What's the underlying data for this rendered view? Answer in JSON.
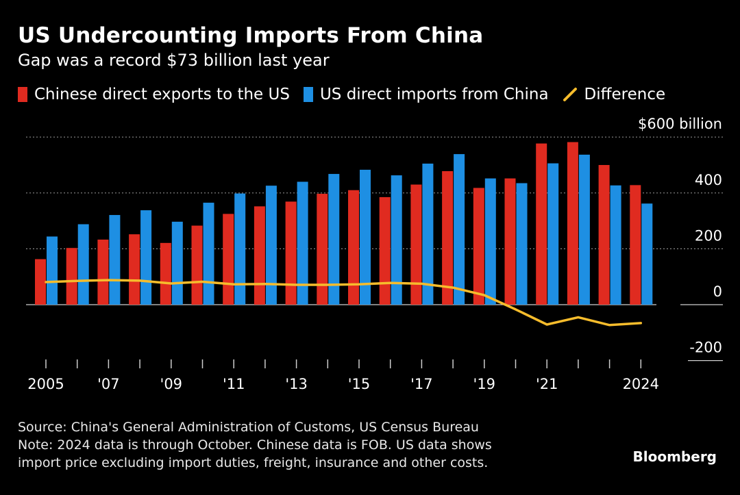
{
  "title": "US Undercounting Imports From China",
  "subtitle": "Gap was a record $73 billion last year",
  "colors": {
    "chinese_exports": "#e02b20",
    "us_imports": "#1e8fe3",
    "difference": "#f6bc2c",
    "grid": "#8a8a8a",
    "background": "#000000"
  },
  "chart_data": {
    "type": "bar",
    "ylabel": "$600 billion",
    "ylim": [
      -200,
      600
    ],
    "yticks": [
      {
        "value": 600,
        "label": "$600 billion"
      },
      {
        "value": 400,
        "label": "400"
      },
      {
        "value": 200,
        "label": "200"
      },
      {
        "value": 0,
        "label": "0"
      },
      {
        "value": -200,
        "label": "-200"
      }
    ],
    "x": [
      2005,
      2006,
      2007,
      2008,
      2009,
      2010,
      2011,
      2012,
      2013,
      2014,
      2015,
      2016,
      2017,
      2018,
      2019,
      2020,
      2021,
      2022,
      2023,
      2024
    ],
    "xtick_labels": [
      {
        "x": 2005,
        "label": "2005"
      },
      {
        "x": 2007,
        "label": "'07"
      },
      {
        "x": 2009,
        "label": "'09"
      },
      {
        "x": 2011,
        "label": "'11"
      },
      {
        "x": 2013,
        "label": "'13"
      },
      {
        "x": 2015,
        "label": "'15"
      },
      {
        "x": 2017,
        "label": "'17"
      },
      {
        "x": 2019,
        "label": "'19"
      },
      {
        "x": 2021,
        "label": "'21"
      },
      {
        "x": 2024,
        "label": "2024"
      }
    ],
    "series": [
      {
        "name": "Chinese direct exports to the US",
        "kind": "bar",
        "values": [
          163,
          203,
          233,
          252,
          221,
          283,
          325,
          352,
          369,
          397,
          410,
          385,
          430,
          478,
          418,
          452,
          577,
          582,
          500,
          428
        ]
      },
      {
        "name": "US direct imports from China",
        "kind": "bar",
        "values": [
          244,
          288,
          321,
          338,
          297,
          365,
          398,
          426,
          440,
          468,
          483,
          463,
          505,
          539,
          452,
          435,
          506,
          537,
          427,
          362
        ]
      },
      {
        "name": "Difference",
        "kind": "line",
        "values": [
          81,
          85,
          88,
          86,
          76,
          82,
          73,
          74,
          71,
          71,
          73,
          78,
          75,
          61,
          34,
          -17,
          -71,
          -45,
          -73,
          -66
        ]
      }
    ]
  },
  "source_lines": [
    "Source: China's General Administration of Customs, US Census Bureau",
    "Note: 2024 data is through October. Chinese data is FOB. US data shows",
    "import price excluding import duties, freight, insurance and other costs."
  ],
  "brand": "Bloomberg"
}
